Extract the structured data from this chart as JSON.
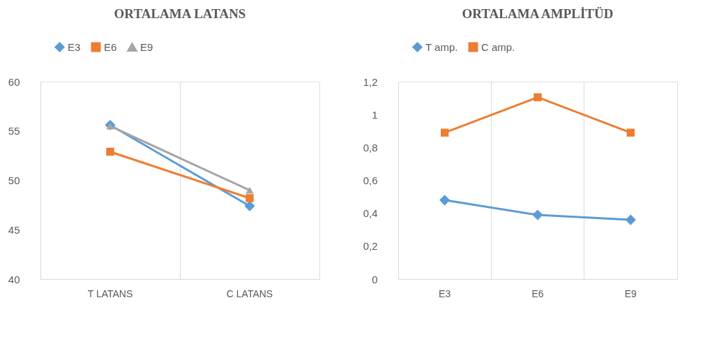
{
  "chart_data": [
    {
      "type": "line",
      "title": "ORTALAMA LATANS",
      "categories": [
        "T LATANS",
        "C LATANS"
      ],
      "ylim": [
        40,
        60
      ],
      "yticks": [
        40,
        45,
        50,
        55,
        60
      ],
      "grid": "x",
      "legend": "top",
      "series": [
        {
          "name": "E3",
          "color": "#5b9bd5",
          "marker": "diamond",
          "values": [
            55.6,
            47.4
          ]
        },
        {
          "name": "E6",
          "color": "#ed7d31",
          "marker": "square",
          "values": [
            52.9,
            48.2
          ]
        },
        {
          "name": "E9",
          "color": "#a5a5a5",
          "marker": "triangle",
          "values": [
            55.5,
            49.0
          ]
        }
      ]
    },
    {
      "type": "line",
      "title": "ORTALAMA AMPLİTÜD",
      "categories": [
        "E3",
        "E6",
        "E9"
      ],
      "ylim": [
        0,
        1.2
      ],
      "yticks": [
        0,
        {
          "value": 0.2,
          "label": "0,2"
        },
        {
          "value": 0.4,
          "label": "0,4"
        },
        {
          "value": 0.6,
          "label": "0,6"
        },
        {
          "value": 0.8,
          "label": "0,8"
        },
        1,
        {
          "value": 1.2,
          "label": "1,2"
        }
      ],
      "grid": "x",
      "legend": "top",
      "series": [
        {
          "name": "T amp.",
          "color": "#5b9bd5",
          "marker": "diamond",
          "values": [
            0.48,
            0.39,
            0.36
          ]
        },
        {
          "name": "C amp.",
          "color": "#ed7d31",
          "marker": "square",
          "values": [
            0.89,
            1.105,
            0.89
          ]
        }
      ]
    }
  ]
}
